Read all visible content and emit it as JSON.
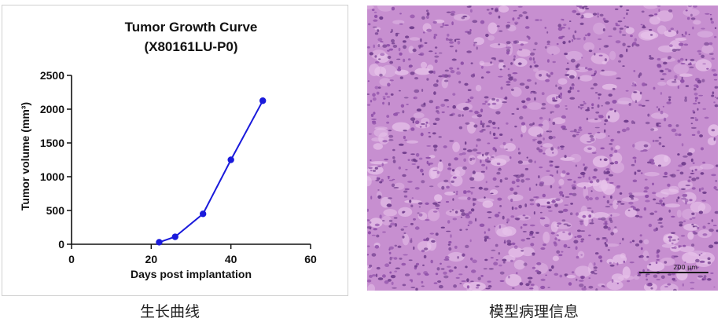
{
  "chart_data": {
    "type": "line",
    "title": "Tumor Growth Curve",
    "subtitle": "(X80161LU-P0)",
    "xlabel": "Days post implantation",
    "ylabel": "Tumor volume (mm³)",
    "xlim": [
      0,
      60
    ],
    "ylim": [
      0,
      2500
    ],
    "xticks": [
      0,
      20,
      40,
      60
    ],
    "yticks": [
      0,
      500,
      1000,
      1500,
      2000,
      2500
    ],
    "grid": false,
    "series": [
      {
        "x": [
          22,
          26,
          33,
          40,
          48
        ],
        "y": [
          30,
          110,
          450,
          1250,
          2125
        ]
      }
    ],
    "colors": {
      "series": "#1a1adb",
      "axes": "#111111"
    }
  },
  "captions": {
    "left": "生长曲线",
    "right": "模型病理信息"
  },
  "histology": {
    "scale_label": "200 µm",
    "stain_colors": [
      "#c78fd0",
      "#8e4fa8",
      "#e7c3ea",
      "#6d3a8a"
    ]
  }
}
